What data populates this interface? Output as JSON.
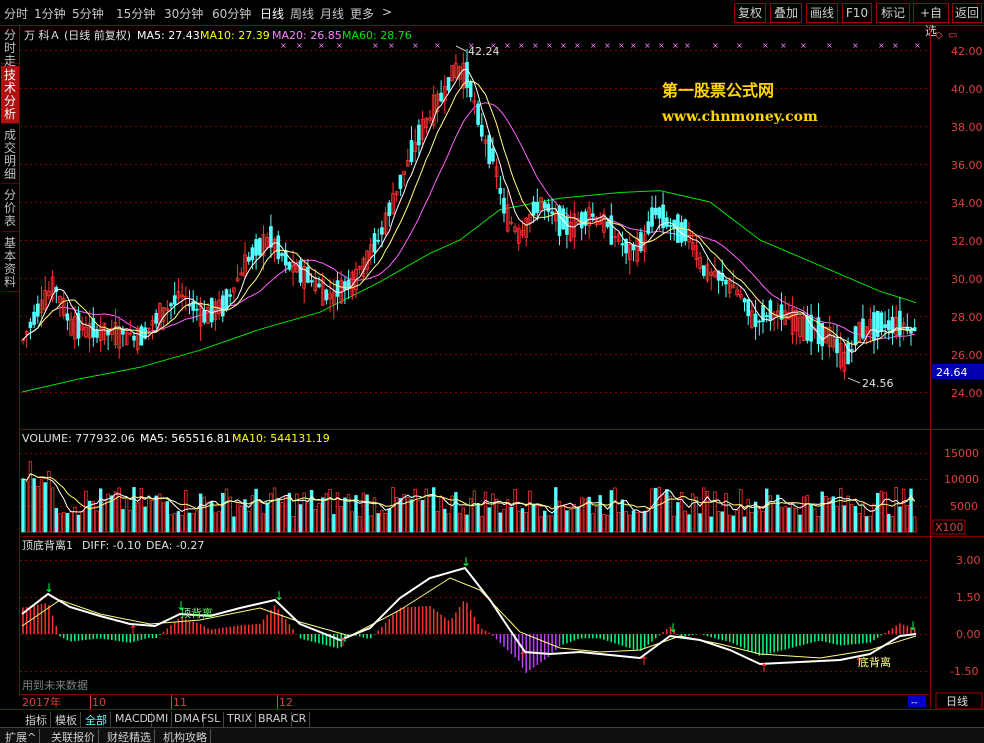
{
  "toolbar": {
    "periods": [
      "分时",
      "1分钟",
      "5分钟",
      "15分钟",
      "30分钟",
      "60分钟",
      "日线",
      "周线",
      "月线",
      "更多"
    ],
    "active_period": "日线",
    "more_arrow": ">",
    "right_buttons": [
      "复权",
      "叠加",
      "画线",
      "F10",
      "标记",
      "+自选",
      "返回"
    ]
  },
  "left_tabs": [
    "分时走势",
    "技术分析",
    "成交明细",
    "分价表",
    "基本资料"
  ],
  "active_left_tab": "技术分析",
  "price_panel": {
    "stock_name": "万 科Ａ",
    "mode": "(日线 前复权)",
    "ma5": "MA5: 27.43",
    "ma10": "MA10: 27.39",
    "ma20": "MA20: 26.85",
    "ma60": "MA60: 28.76",
    "high_label": "42.24",
    "low_label": "24.56",
    "current_price": "24.64",
    "y_ticks": [
      "42.00",
      "40.00",
      "38.00",
      "36.00",
      "34.00",
      "32.00",
      "30.00",
      "28.00",
      "26.00",
      "24.00"
    ]
  },
  "watermark": {
    "title": "第一股票公式网",
    "url": "www.chnmoney.com"
  },
  "volume_panel": {
    "volume": "VOLUME: 777932.06",
    "ma5": "MA5: 565516.81",
    "ma10": "MA10: 544131.19",
    "y_ticks": [
      "15000",
      "10000",
      "5000"
    ],
    "unit": "X100"
  },
  "indicator_panel": {
    "name": "顶底背离1",
    "diff": "DIFF: -0.10",
    "dea": "DEA: -0.27",
    "y_ticks": [
      "3.00",
      "1.50",
      "0.00",
      "-1.50"
    ],
    "label_top_div": "顶背离",
    "label_bottom_div": "底背离",
    "future_note": "用到未来数据"
  },
  "date_axis": [
    "2017年",
    "10",
    "11",
    "12"
  ],
  "period_box": "日线",
  "zoom_controls": [
    "+",
    "-",
    "0"
  ],
  "indicator_tabs": [
    "指标",
    "模板",
    "全部",
    "MACD",
    "DMI",
    "DMA",
    "FSL",
    "TRIX",
    "BRAR",
    "CR"
  ],
  "active_indicator_tab": "全部",
  "status_tabs": [
    "扩展^",
    "关联报价",
    "财经精选",
    "机构攻略"
  ],
  "colors": {
    "up": "#ff3232",
    "down": "#54ffff",
    "ma5": "#ffffff",
    "ma10": "#ffff00",
    "ma20": "#ff80ff",
    "ma60": "#00e600",
    "grid": "#800000",
    "watermark_title": "#ffd700"
  }
}
